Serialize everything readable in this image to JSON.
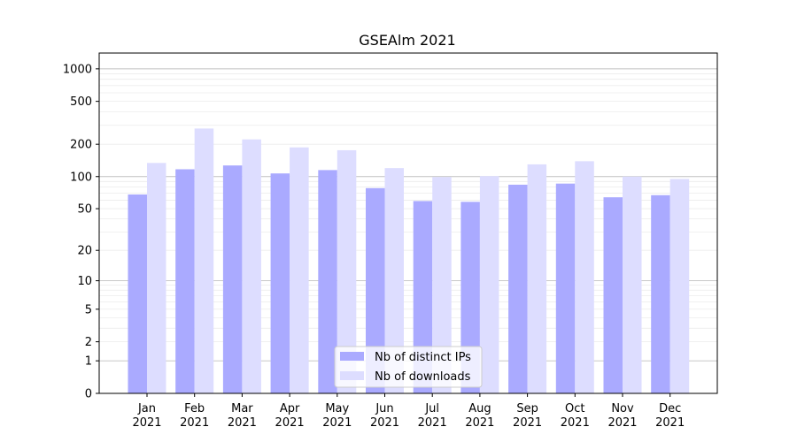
{
  "chart_data": {
    "type": "bar",
    "title": "GSEAlm 2021",
    "xlabel": "",
    "ylabel": "",
    "yscale": "symlog",
    "ylim": [
      0,
      1400
    ],
    "yticks": [
      0,
      1,
      2,
      5,
      10,
      20,
      50,
      100,
      200,
      500,
      1000
    ],
    "ytick_labels": [
      "0",
      "1",
      "2",
      "5",
      "10",
      "20",
      "50",
      "100",
      "200",
      "500",
      "1000"
    ],
    "grid": true,
    "legend_position": "lower-center",
    "categories": [
      [
        "Jan",
        "2021"
      ],
      [
        "Feb",
        "2021"
      ],
      [
        "Mar",
        "2021"
      ],
      [
        "Apr",
        "2021"
      ],
      [
        "May",
        "2021"
      ],
      [
        "Jun",
        "2021"
      ],
      [
        "Jul",
        "2021"
      ],
      [
        "Aug",
        "2021"
      ],
      [
        "Sep",
        "2021"
      ],
      [
        "Oct",
        "2021"
      ],
      [
        "Nov",
        "2021"
      ],
      [
        "Dec",
        "2021"
      ]
    ],
    "series": [
      {
        "name": "Nb of distinct IPs",
        "color": "#aaaaff",
        "values": [
          68,
          117,
          127,
          107,
          115,
          78,
          59,
          58,
          84,
          86,
          64,
          67
        ]
      },
      {
        "name": "Nb of downloads",
        "color": "#ddddff",
        "values": [
          134,
          280,
          222,
          187,
          176,
          120,
          99,
          101,
          130,
          139,
          100,
          95
        ]
      }
    ]
  }
}
